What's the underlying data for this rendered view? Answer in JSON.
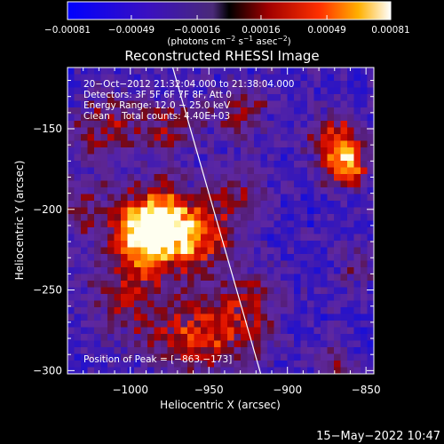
{
  "chart_data": {
    "type": "heatmap",
    "title": "Reconstructed RHESSI Image",
    "xlabel": "Heliocentric X (arcsec)",
    "ylabel": "Heliocentric Y (arcsec)",
    "xlim": [
      -1040,
      -845
    ],
    "ylim": [
      -302,
      -112
    ],
    "x_ticks": [
      -1000,
      -950,
      -900,
      -850
    ],
    "x_tick_labels": [
      "−1000",
      "−950",
      "−900",
      "−850"
    ],
    "y_ticks": [
      -150,
      -200,
      -250,
      -300
    ],
    "y_tick_labels": [
      "−150",
      "−200",
      "−250",
      "−300"
    ],
    "colorbar": {
      "range": [
        -0.00081,
        0.00081
      ],
      "ticks": [
        -0.00081,
        -0.00049,
        -0.00016,
        0.00016,
        0.00049,
        0.00081
      ],
      "tick_labels": [
        "−0.00081",
        "−0.00049",
        "−0.00016",
        "0.00016",
        "0.00049",
        "0.00081"
      ],
      "unit_main": "(photons cm",
      "unit_exp1": "−2",
      "unit_mid1": " s",
      "unit_exp2": "−1",
      "unit_mid2": " asec",
      "unit_exp3": "−2",
      "unit_end": ")"
    },
    "annotations": {
      "time": "20−Oct−2012 21:32:04.000 to 21:38:04.000",
      "detectors": "Detectors: 3F 5F 6F 7F 8F, Att 0",
      "energy": "Energy Range: 12.0 − 25.0 keV",
      "clean": "Clean    Total counts: 4.40E+03",
      "peak": "Position of Peak = [−863,−173]"
    },
    "peak_position": [
      -863,
      -173
    ],
    "limb_line": [
      [
        -973,
        -112
      ],
      [
        -917,
        -302
      ]
    ],
    "sources": [
      {
        "x": -980,
        "y": -210,
        "amp": 1.0,
        "sigma": 16
      },
      {
        "x": -995,
        "y": -215,
        "amp": 0.7,
        "sigma": 14
      },
      {
        "x": -955,
        "y": -218,
        "amp": 0.55,
        "sigma": 16
      },
      {
        "x": -863,
        "y": -173,
        "amp": 0.9,
        "sigma": 10
      },
      {
        "x": -870,
        "y": -155,
        "amp": 0.55,
        "sigma": 12
      },
      {
        "x": -1015,
        "y": -150,
        "amp": 0.45,
        "sigma": 16
      },
      {
        "x": -975,
        "y": -150,
        "amp": 0.4,
        "sigma": 14
      },
      {
        "x": -930,
        "y": -140,
        "amp": 0.4,
        "sigma": 14
      },
      {
        "x": -1000,
        "y": -255,
        "amp": 0.45,
        "sigma": 18
      },
      {
        "x": -965,
        "y": -280,
        "amp": 0.5,
        "sigma": 16
      },
      {
        "x": -935,
        "y": -275,
        "amp": 0.45,
        "sigma": 18
      },
      {
        "x": -920,
        "y": -255,
        "amp": 0.3,
        "sigma": 14
      },
      {
        "x": -1030,
        "y": -200,
        "amp": 0.35,
        "sigma": 12
      },
      {
        "x": -930,
        "y": -190,
        "amp": 0.35,
        "sigma": 14
      },
      {
        "x": -855,
        "y": -235,
        "amp": 0.3,
        "sigma": 12
      },
      {
        "x": -870,
        "y": -295,
        "amp": 0.35,
        "sigma": 10
      }
    ]
  },
  "footer": {
    "timestamp": "15−May−2022 10:47"
  }
}
